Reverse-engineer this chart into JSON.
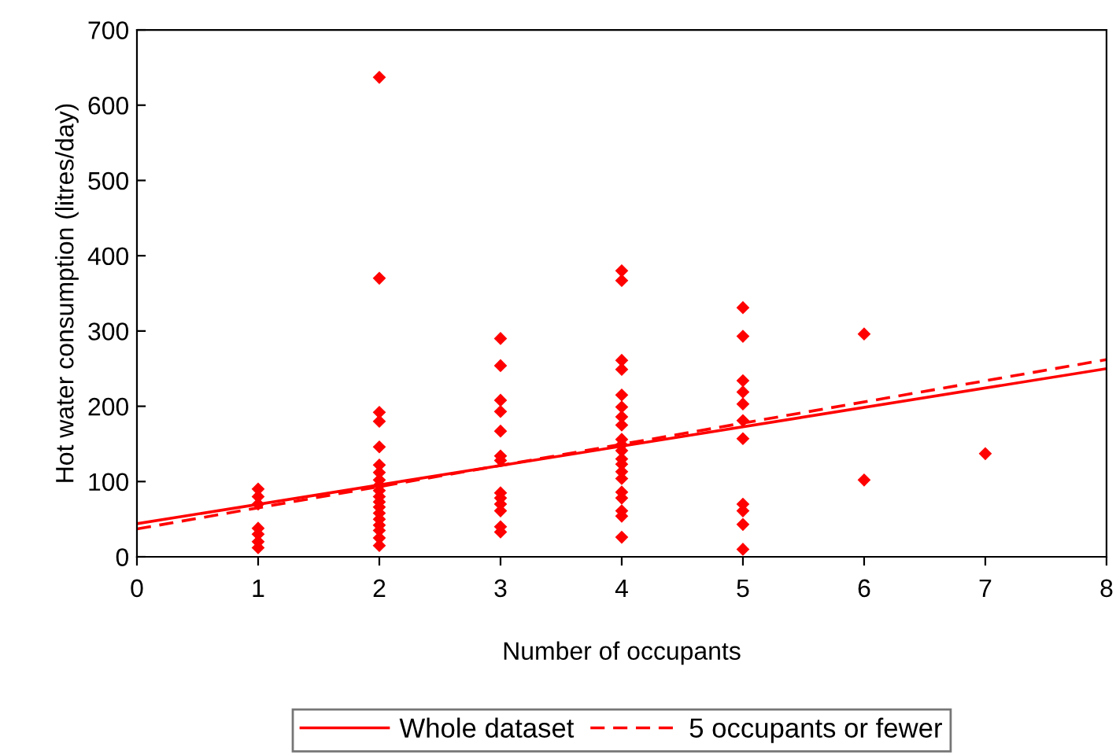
{
  "chart_data": {
    "type": "scatter",
    "xlabel": "Number of occupants",
    "ylabel": "Hot water consumption (litres/day)",
    "xlim": [
      0,
      8
    ],
    "ylim": [
      0,
      700
    ],
    "xticks": [
      0,
      1,
      2,
      3,
      4,
      5,
      6,
      7,
      8
    ],
    "yticks": [
      0,
      100,
      200,
      300,
      400,
      500,
      600,
      700
    ],
    "grid": false,
    "legend": "bottom",
    "marker": "diamond",
    "series": [
      {
        "color": "#ff0000",
        "x": [
          1,
          1,
          1,
          1,
          1,
          1,
          1,
          2,
          2,
          2,
          2,
          2,
          2,
          2,
          2,
          2,
          2,
          2,
          2,
          2,
          2,
          2,
          2,
          2,
          2,
          2,
          3,
          3,
          3,
          3,
          3,
          3,
          3,
          3,
          3,
          3,
          3,
          3,
          3,
          4,
          4,
          4,
          4,
          4,
          4,
          4,
          4,
          4,
          4,
          4,
          4,
          4,
          4,
          4,
          4,
          4,
          4,
          4,
          4,
          5,
          5,
          5,
          5,
          5,
          5,
          5,
          5,
          5,
          5,
          5,
          6,
          6,
          7
        ],
        "values": [
          90,
          80,
          70,
          38,
          30,
          20,
          12,
          637,
          370,
          192,
          180,
          146,
          122,
          112,
          102,
          95,
          88,
          80,
          73,
          66,
          58,
          50,
          42,
          35,
          25,
          15,
          290,
          254,
          208,
          193,
          167,
          134,
          128,
          85,
          78,
          70,
          61,
          40,
          33,
          380,
          367,
          261,
          249,
          215,
          199,
          186,
          175,
          156,
          149,
          141,
          130,
          123,
          113,
          104,
          86,
          78,
          61,
          54,
          26,
          331,
          293,
          234,
          219,
          203,
          181,
          157,
          70,
          61,
          43,
          10,
          296,
          102,
          137
        ]
      },
      {
        "type": "line",
        "name": "Whole dataset",
        "color": "#ff0000",
        "line_style": "solid",
        "marker": "none",
        "x": [
          0,
          8
        ],
        "values": [
          44,
          250
        ]
      },
      {
        "type": "line",
        "name": "5 occupants or fewer",
        "color": "#ff0000",
        "line_style": "dashed",
        "marker": "none",
        "x": [
          0,
          8
        ],
        "values": [
          37,
          262
        ]
      }
    ]
  }
}
